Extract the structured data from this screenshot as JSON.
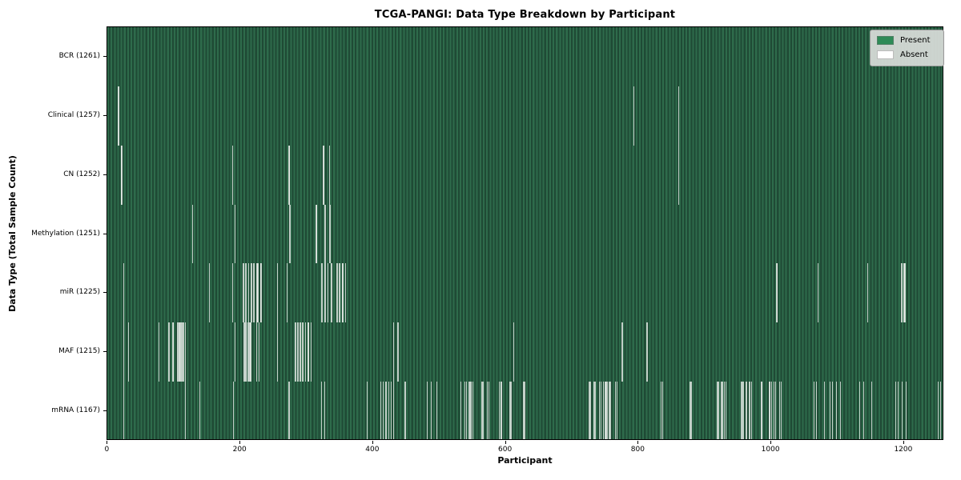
{
  "chart_data": {
    "type": "heatmap",
    "title": "TCGA-PANGI: Data Type Breakdown by Participant",
    "xlabel": "Participant",
    "ylabel": "Data Type (Total Sample Count)",
    "x_ticks": [
      0,
      200,
      400,
      600,
      800,
      1000,
      1200
    ],
    "x_range": [
      0,
      1261
    ],
    "total_participants": 1261,
    "grid": false,
    "legend": {
      "position": "upper right",
      "entries": [
        {
          "label": "Present",
          "color": "#2e8b57"
        },
        {
          "label": "Absent",
          "color": "#ffffff"
        }
      ]
    },
    "colors": {
      "present_stripe_light": "#2e6b4b",
      "present_stripe_dark": "#1f4a35",
      "absent_line": "#eef1ee",
      "row_divider": "#0a120b",
      "axis": "#000000",
      "legend_bg": "#dadada"
    },
    "rows": [
      {
        "data_type": "BCR",
        "label": "BCR (1261)",
        "present_count": 1261,
        "absent_approx": []
      },
      {
        "data_type": "Clinical",
        "label": "Clinical (1257)",
        "present_count": 1257,
        "absent_approx": [
          16,
          17,
          793,
          860
        ]
      },
      {
        "data_type": "CN",
        "label": "CN (1252)",
        "present_count": 1252,
        "absent_approx": [
          20,
          21,
          188,
          273,
          274,
          325,
          326,
          334,
          860
        ]
      },
      {
        "data_type": "Methylation",
        "label": "Methylation (1251)",
        "present_count": 1251,
        "absent_approx": [
          128,
          192,
          274,
          275,
          314,
          315,
          327,
          328,
          334,
          335
        ]
      },
      {
        "data_type": "miR",
        "label": "miR (1225)",
        "present_count": 1225,
        "absent_approx": [
          24,
          153,
          188,
          204,
          205,
          208,
          212,
          216,
          217,
          220,
          225,
          226,
          230,
          231,
          256,
          270,
          322,
          323,
          327,
          328,
          332,
          337,
          345,
          346,
          349,
          353,
          354,
          358,
          1008,
          1009,
          1070,
          1145,
          1196,
          1197,
          1200,
          1201
        ]
      },
      {
        "data_type": "MAF",
        "label": "MAF (1215)",
        "present_count": 1215,
        "absent_approx": [
          24,
          31,
          77,
          92,
          98,
          99,
          105,
          106,
          107,
          108,
          109,
          111,
          112,
          114,
          117,
          192,
          205,
          206,
          208,
          209,
          211,
          212,
          214,
          215,
          216,
          224,
          228,
          256,
          282,
          283,
          286,
          287,
          290,
          293,
          294,
          298,
          302,
          303,
          306,
          431,
          437,
          438,
          612,
          775,
          812,
          813
        ]
      },
      {
        "data_type": "mRNA",
        "label": "mRNA (1167)",
        "present_count": 1167,
        "absent_approx": [
          24,
          117,
          139,
          189,
          273,
          322,
          327,
          391,
          411,
          415,
          419,
          423,
          427,
          431,
          448,
          481,
          487,
          496,
          532,
          538,
          540,
          544,
          546,
          548,
          550,
          564,
          566,
          572,
          574,
          590,
          592,
          593,
          606,
          607,
          608,
          626,
          628,
          725,
          727,
          732,
          734,
          741,
          743,
          747,
          749,
          750,
          751,
          753,
          755,
          757,
          765,
          767,
          834,
          836,
          877,
          879,
          918,
          920,
          924,
          926,
          929,
          931,
          954,
          956,
          958,
          962,
          967,
          970,
          985,
          986,
          997,
          998,
          1000,
          1004,
          1006,
          1012,
          1015,
          1064,
          1068,
          1080,
          1088,
          1092,
          1098,
          1104,
          1133,
          1139,
          1151,
          1187,
          1191,
          1197,
          1203,
          1251,
          1255,
          1259
        ]
      }
    ]
  }
}
